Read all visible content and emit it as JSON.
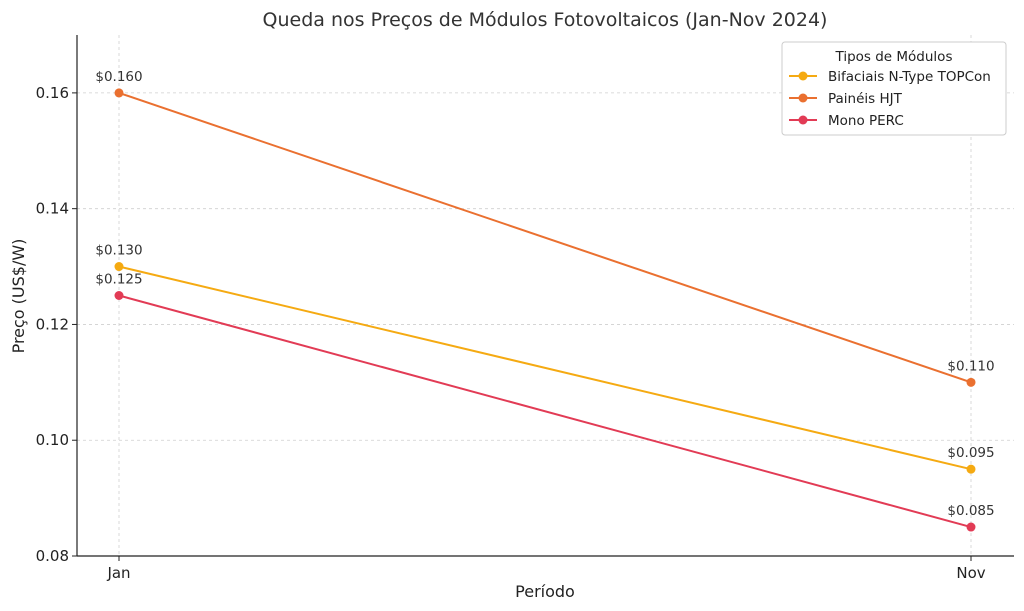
{
  "chart_data": {
    "type": "line",
    "title": "Queda nos Preços de Módulos Fotovoltaicos (Jan-Nov 2024)",
    "xlabel": "Período",
    "ylabel": "Preço (US$/W)",
    "categories": [
      "Jan",
      "Nov"
    ],
    "ylim": [
      0.08,
      0.17
    ],
    "yticks": [
      "0.08",
      "0.10",
      "0.12",
      "0.14",
      "0.16"
    ],
    "grid": true,
    "legend": {
      "title": "Tipos de Módulos",
      "placement": "top-right"
    },
    "series": [
      {
        "name": "Bifaciais N-Type TOPCon",
        "color": "#f5aa12",
        "values": [
          0.13,
          0.095
        ],
        "labels": [
          "$0.130",
          "$0.095"
        ]
      },
      {
        "name": "Painéis HJT",
        "color": "#ea7030",
        "values": [
          0.16,
          0.11
        ],
        "labels": [
          "$0.160",
          "$0.110"
        ]
      },
      {
        "name": "Mono PERC",
        "color": "#e23b55",
        "values": [
          0.125,
          0.085
        ],
        "labels": [
          "$0.125",
          "$0.085"
        ]
      }
    ]
  }
}
